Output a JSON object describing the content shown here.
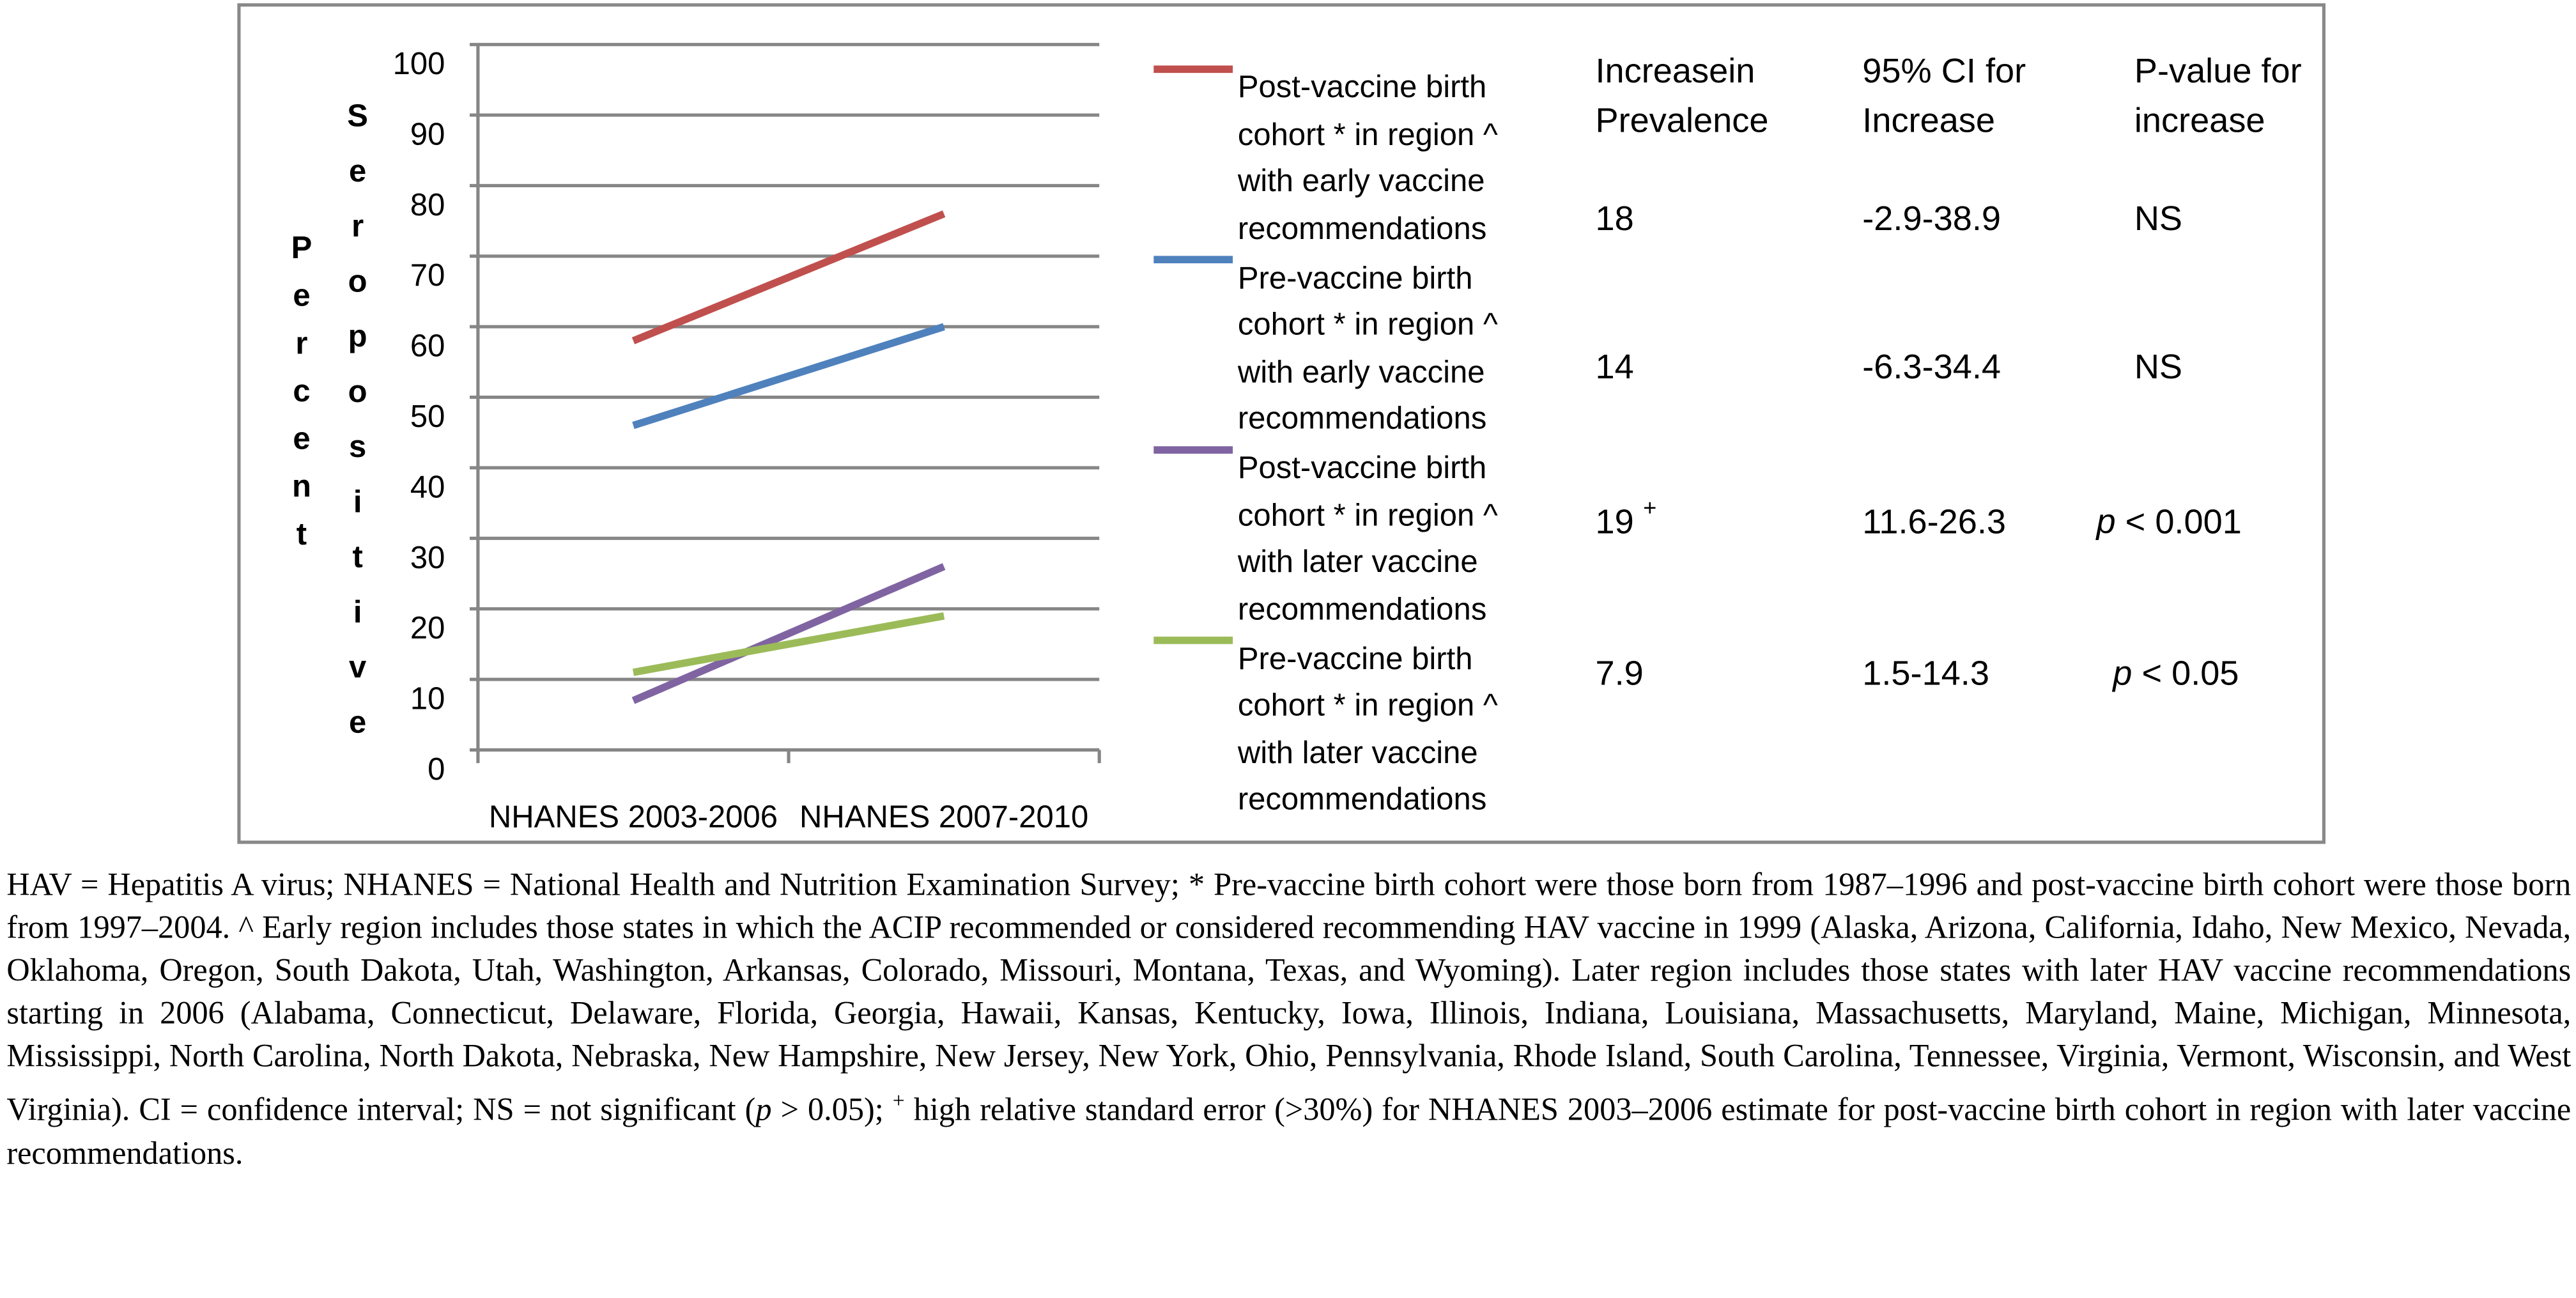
{
  "chart_data": {
    "type": "line",
    "ylabel": [
      "Percent",
      "Seropositive"
    ],
    "categories": [
      "NHANES 2003-2006",
      "NHANES 2007-2010"
    ],
    "series": [
      {
        "name": "Post-vaccine birth cohort * in region ^ with early vaccine recommendations",
        "color": "#c0504d",
        "values": [
          58,
          76
        ]
      },
      {
        "name": "Pre-vaccine birth cohort * in region ^ with early vaccine recommendations",
        "color": "#4f81bd",
        "values": [
          46,
          60
        ]
      },
      {
        "name": "Post-vaccine birth cohort * in region ^ with later vaccine recommendations",
        "color": "#8064a2",
        "values": [
          7,
          26
        ]
      },
      {
        "name": "Pre-vaccine birth cohort * in region ^ with later vaccine recommendations",
        "color": "#9bbb59",
        "values": [
          11,
          19
        ]
      }
    ],
    "ylim": [
      0,
      100
    ],
    "yticks": [
      0,
      10,
      20,
      30,
      40,
      50,
      60,
      70,
      80,
      90,
      100
    ],
    "grid": true
  },
  "table": {
    "headers": [
      "Increasein Prevalence",
      "95% CI for Increase",
      "P-value for increase"
    ],
    "rows": [
      [
        "18",
        "-2.9-38.9",
        "NS"
      ],
      [
        "14",
        "-6.3-34.4",
        "NS"
      ],
      [
        "19",
        "11.6-26.3",
        "p < 0.001"
      ],
      [
        "7.9",
        "1.5-14.3",
        "p < 0.05"
      ]
    ],
    "superscript": "+"
  },
  "caption": [
    "HAV = Hepatitis A virus; NHANES = National Health and Nutrition Examination Survey; * Pre-vaccine birth cohort were those born from 1987–1996 and post-vaccine birth cohort were those born from 1997–2004. ^ Early region includes those states in which the ACIP recommended or considered recommending HAV vaccine in 1999 (Alaska, Arizona, California, Idaho, New Mexico, Nevada, Oklahoma, Oregon, South Dakota, Utah, Washington, Arkansas, Colorado, Missouri, Montana, Texas, and Wyoming). Later region includes those states with later HAV vaccine recommendations starting in 2006 (Alabama, Connecticut, Delaware, Florida, Georgia, Hawaii, Kansas, Kentucky, Iowa, Illinois, Indiana, Louisiana, Massachusetts, Maryland, Maine, Michigan, Minnesota, Mississippi, North Carolina, North Dakota, Nebraska, New Hampshire, New Jersey, New York, Ohio, Pennsylvania, Rhode Island, South Carolina, Tennessee, Virginia, Vermont, Wisconsin, and West Virginia). CI = confidence interval; NS = not significant (",
    "p",
    " > 0.05); ",
    "+",
    " high relative standard error (>30%) for NHANES 2003–2006 estimate for post-vaccine birth cohort in region with later vaccine recommendations."
  ]
}
